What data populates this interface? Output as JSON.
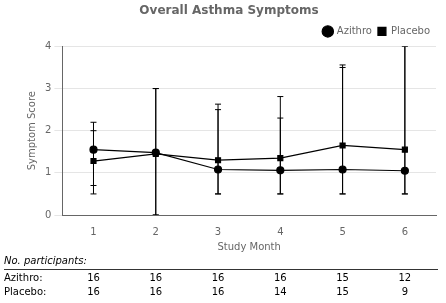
{
  "chart_data": {
    "type": "line",
    "title": "Overall Asthma Symptoms",
    "xlabel": "Study Month",
    "ylabel": "Symptom Score",
    "x": [
      1,
      2,
      3,
      4,
      5,
      6
    ],
    "xlim": [
      0.5,
      6.5
    ],
    "xticks": [
      1,
      2,
      3,
      4,
      5,
      6
    ],
    "ylim": [
      0,
      4
    ],
    "yticks": [
      0,
      1,
      2,
      3,
      4
    ],
    "grid": "y",
    "legend": "upper right",
    "series": [
      {
        "name": "Azithro",
        "color": "#000000",
        "marker": "circle",
        "line_style": "solid",
        "values": [
          1.55,
          1.48,
          1.08,
          1.06,
          1.08,
          1.05
        ],
        "error_upper": [
          0.65,
          1.52,
          1.55,
          1.75,
          2.48,
          2.95
        ],
        "error_lower": [
          0.85,
          1.48,
          0.58,
          0.56,
          0.58,
          0.55
        ]
      },
      {
        "name": "Placebo",
        "color": "#000000",
        "marker": "square",
        "line_style": "solid",
        "values": [
          1.28,
          1.45,
          1.3,
          1.35,
          1.65,
          1.55
        ],
        "error_upper": [
          0.72,
          1.55,
          1.2,
          0.95,
          1.85,
          2.45
        ],
        "error_lower": [
          0.78,
          1.45,
          0.8,
          0.85,
          1.15,
          1.05
        ]
      }
    ],
    "participants": {
      "label": "No. participants:",
      "rows": [
        {
          "label": "Azithro:",
          "values": [
            16,
            16,
            16,
            16,
            15,
            12
          ]
        },
        {
          "label": "Placebo:",
          "values": [
            16,
            16,
            16,
            14,
            15,
            9
          ]
        }
      ]
    }
  }
}
